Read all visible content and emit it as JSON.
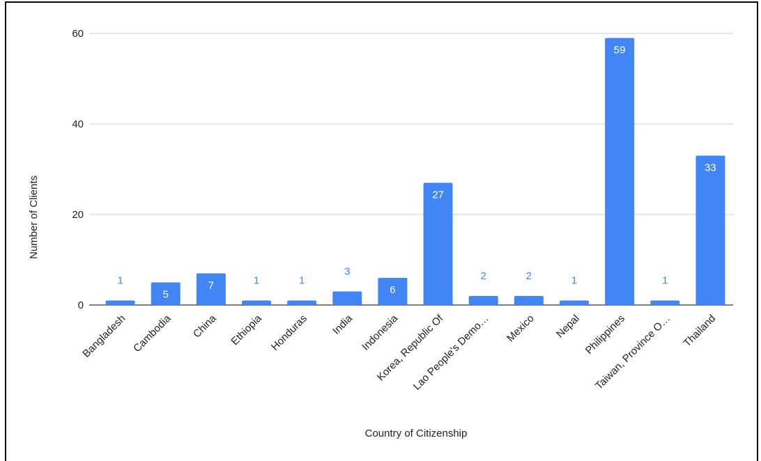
{
  "chart_data": {
    "type": "bar",
    "title": "",
    "xlabel": "Country of Citizenship",
    "ylabel": "Number of Clients",
    "ylim": [
      0,
      60
    ],
    "yticks": [
      0,
      20,
      40,
      60
    ],
    "grid": true,
    "legend": "none",
    "categories": [
      "Bangladesh",
      "Cambodia",
      "China",
      "Ethiopia",
      "Honduras",
      "India",
      "Indonesia",
      "Korea, Republic Of",
      "Lao People's Demo…",
      "Mexico",
      "Nepal",
      "Philippines",
      "Taiwan, Province O…",
      "Thailand"
    ],
    "series": [
      {
        "values": [
          1,
          5,
          7,
          1,
          1,
          3,
          6,
          27,
          2,
          2,
          1,
          59,
          1,
          33
        ]
      }
    ],
    "colors": {
      "bar": "#4285f4",
      "label_inside": "#ffffff",
      "label_outside": "#4285f4",
      "grid": "#cccccc",
      "baseline": "#333333"
    }
  }
}
